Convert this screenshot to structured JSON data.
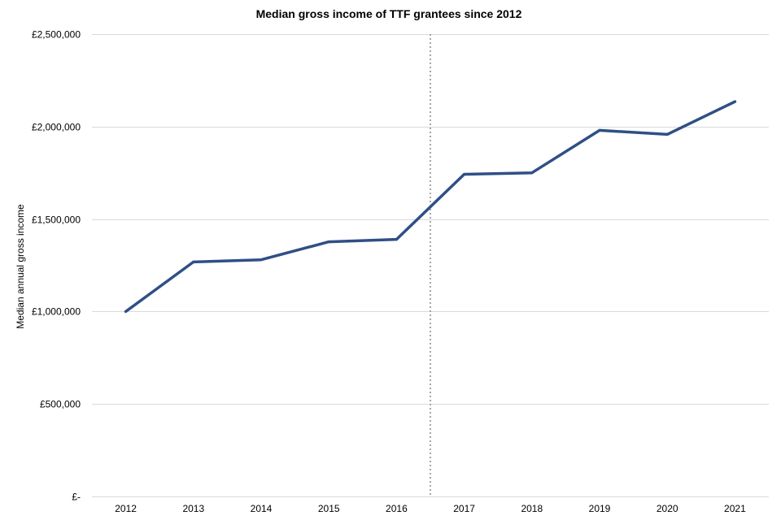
{
  "chart_data": {
    "type": "line",
    "title": "Median gross income of TTF grantees since 2012",
    "xlabel": "",
    "ylabel": "Median annual  gross income",
    "categories": [
      "2012",
      "2013",
      "2014",
      "2015",
      "2016",
      "2017",
      "2018",
      "2019",
      "2020",
      "2021"
    ],
    "series": [
      {
        "name": "Median gross income",
        "values": [
          1000000,
          1268000,
          1280000,
          1377000,
          1390000,
          1742000,
          1750000,
          1980000,
          1958000,
          2135000
        ],
        "color": "#2f4f86"
      }
    ],
    "ylim": [
      0,
      2500000
    ],
    "yticks": [
      0,
      500000,
      1000000,
      1500000,
      2000000,
      2500000
    ],
    "ytick_labels": [
      "£-",
      "£500,000",
      "£1,000,000",
      "£1,500,000",
      "£2,000,000",
      "£2,500,000"
    ],
    "grid": true,
    "divider_between": [
      "2016",
      "2017"
    ],
    "divider_color": "#a6a6a6"
  }
}
